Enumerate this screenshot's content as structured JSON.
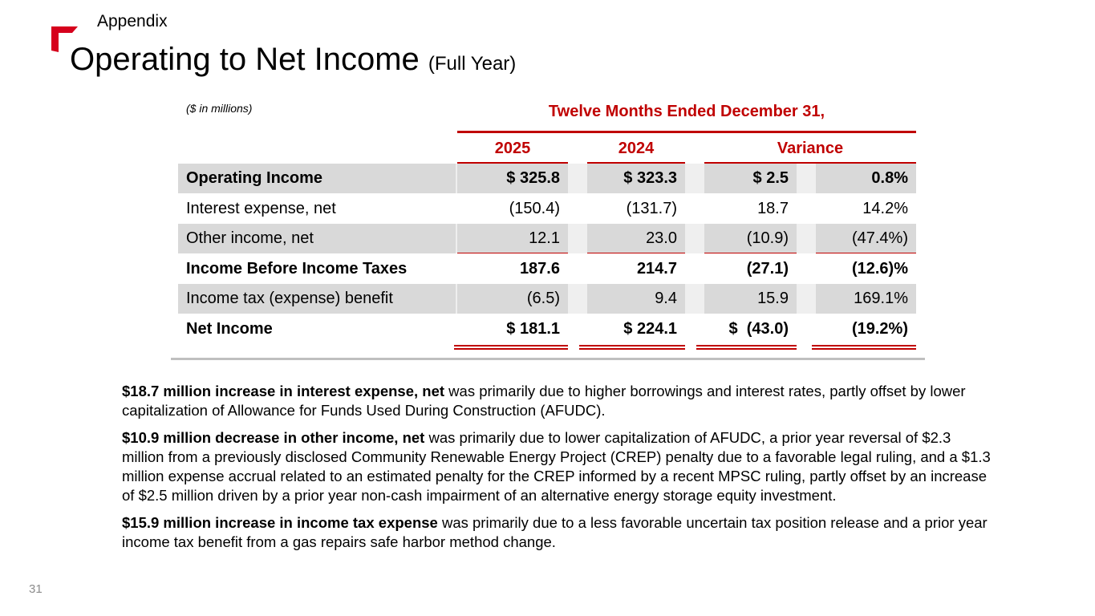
{
  "header": {
    "section": "Appendix",
    "title": "Operating to Net Income",
    "subtitle": "(Full Year)"
  },
  "table": {
    "units": "($ in millions)",
    "period": "Twelve Months Ended December 31,",
    "columns": [
      "2025",
      "2024",
      "Variance"
    ],
    "rows": [
      {
        "cells": [
          "Operating Income",
          "$ 325.8",
          "$ 323.3",
          "$ 2.5",
          "0.8%"
        ],
        "bold": true,
        "shaded": true
      },
      {
        "cells": [
          "Interest expense, net",
          "(150.4)",
          "(131.7)",
          "18.7",
          "14.2%"
        ],
        "bold": false,
        "shaded": false
      },
      {
        "cells": [
          "Other income, net",
          "12.1",
          "23.0",
          "(10.9)",
          "(47.4%)"
        ],
        "bold": false,
        "shaded": true
      },
      {
        "cells": [
          "Income Before Income Taxes",
          "187.6",
          "214.7",
          "(27.1)",
          "(12.6)%"
        ],
        "bold": true,
        "shaded": false
      },
      {
        "cells": [
          "Income tax (expense) benefit",
          "(6.5)",
          "9.4",
          "15.9",
          "169.1%"
        ],
        "bold": false,
        "shaded": true
      },
      {
        "cells": [
          "Net Income",
          "$ 181.1",
          "$ 224.1",
          "$  (43.0)",
          "(19.2%)"
        ],
        "bold": true,
        "shaded": false
      }
    ]
  },
  "notes": [
    {
      "bold": "$18.7 million increase in interest expense, net",
      "text": " was primarily due to higher borrowings and interest rates, partly offset by lower capitalization of Allowance for Funds Used During Construction (AFUDC)."
    },
    {
      "bold": "$10.9 million decrease in other income, net",
      "text": " was primarily due to lower capitalization of AFUDC, a prior year reversal of $2.3 million from a previously disclosed Community Renewable Energy Project (CREP) penalty due to a favorable legal ruling, and a $1.3 million expense accrual related to an estimated penalty for the CREP informed by a recent MPSC ruling, partly offset by an increase of $2.5 million driven by a prior year non-cash impairment of an alternative energy storage equity investment."
    },
    {
      "bold": "$15.9 million increase in income tax expense",
      "text": " was primarily due to a less favorable uncertain tax position release and a prior year income tax benefit from a gas repairs safe harbor method change."
    }
  ],
  "page_number": "31"
}
